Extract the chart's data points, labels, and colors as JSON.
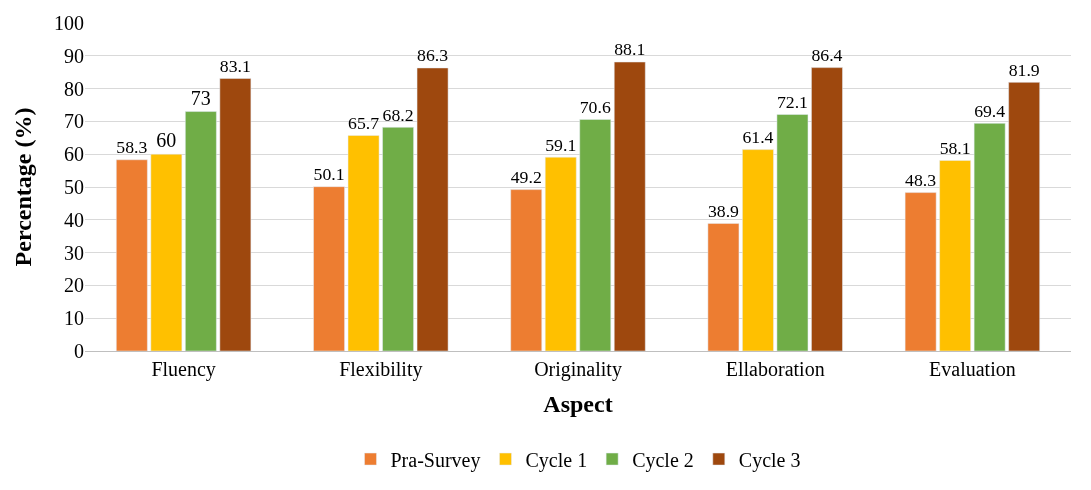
{
  "chart_data": {
    "type": "bar",
    "xlabel": "Aspect",
    "ylabel": "Percentage (%)",
    "categories": [
      "Fluency",
      "Flexibility",
      "Originality",
      "Ellaboration",
      "Evaluation"
    ],
    "series": [
      {
        "name": "Pra-Survey",
        "color": "#ed7d31",
        "values": [
          58.3,
          50.1,
          49.2,
          38.9,
          48.3
        ]
      },
      {
        "name": "Cycle 1",
        "color": "#ffc000",
        "values": [
          60,
          65.7,
          59.1,
          61.4,
          58.1
        ]
      },
      {
        "name": "Cycle 2",
        "color": "#70ad47",
        "values": [
          73,
          68.2,
          70.6,
          72.1,
          69.4
        ]
      },
      {
        "name": "Cycle 3",
        "color": "#9e480e",
        "values": [
          83.1,
          86.3,
          88.1,
          86.4,
          81.9
        ]
      }
    ],
    "ylim": [
      0,
      100
    ],
    "yticks": [
      0,
      10,
      20,
      30,
      40,
      50,
      60,
      70,
      80,
      90,
      100
    ],
    "grid": "y",
    "legend": "bottom",
    "data_labels": true
  }
}
